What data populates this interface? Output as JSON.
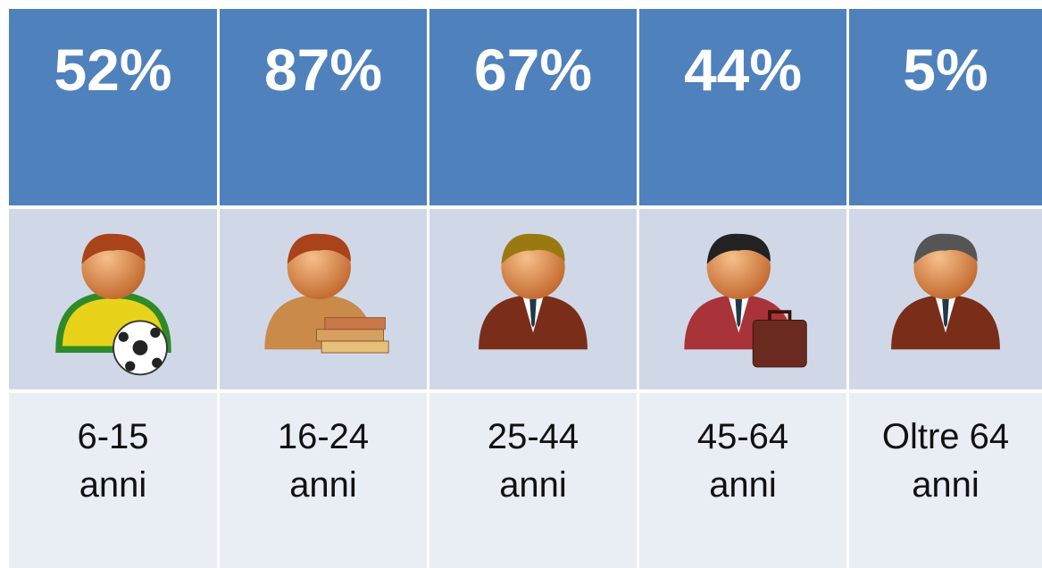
{
  "table": {
    "headers": [
      "52%",
      "87%",
      "67%",
      "44%",
      "5%"
    ],
    "labels": [
      [
        "6-15",
        "anni"
      ],
      [
        "16-24",
        "anni"
      ],
      [
        "25-44",
        "anni"
      ],
      [
        "45-64",
        "anni"
      ],
      [
        "Oltre 64",
        "anni"
      ]
    ]
  }
}
